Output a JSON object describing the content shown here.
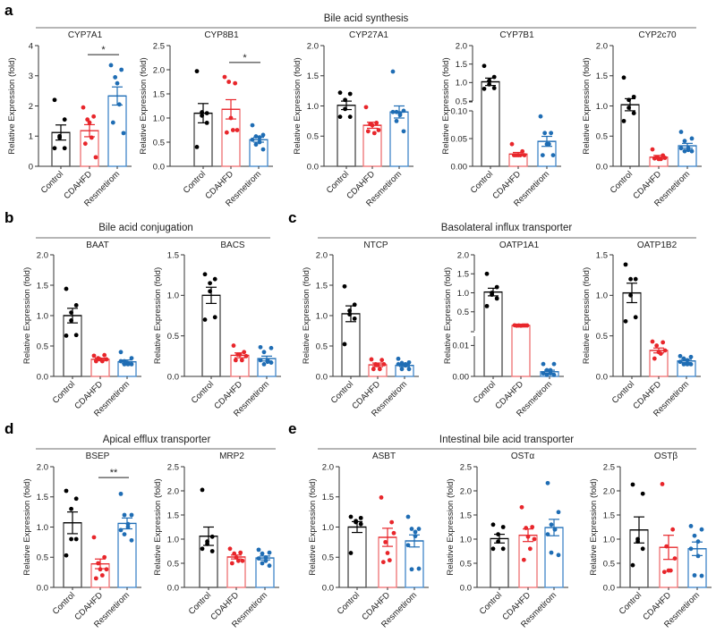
{
  "colors": {
    "Control": "#000000",
    "CDAHFD": "#e8262b",
    "Resmetirom": "#1f6db4",
    "bar_Control": "#555555",
    "bar_CDAHFD": "#f07a7c",
    "bar_Resmetirom": "#4e8fcc",
    "section_line": "#8a8a8a"
  },
  "sections": [
    {
      "letter": "a",
      "title": "Bile acid synthesis"
    },
    {
      "letter": "b",
      "title": "Bile acid conjugation"
    },
    {
      "letter": "c",
      "title": "Basolateral influx transporter"
    },
    {
      "letter": "d",
      "title": "Apical efflux transporter"
    },
    {
      "letter": "e",
      "title": "Intestinal bile acid transporter"
    }
  ],
  "chart_data": [
    {
      "type": "bar",
      "section": "a",
      "title": "CYP7A1",
      "ylabel": "Relative Expression (fold)",
      "ylim": [
        0,
        4
      ],
      "yticks": [
        0,
        1,
        2,
        3,
        4
      ],
      "ytick_labels": [
        "0",
        "1",
        "2",
        "3",
        "4"
      ],
      "categories": [
        "Control",
        "CDAHFD",
        "Resmetirom"
      ],
      "groups": [
        {
          "mean": 1.12,
          "sem": 0.25,
          "points": [
            2.2,
            1.55,
            0.95,
            1.0,
            0.6,
            0.6
          ]
        },
        {
          "mean": 1.18,
          "sem": 0.2,
          "points": [
            1.95,
            1.65,
            1.55,
            1.45,
            0.95,
            0.75,
            0.3
          ]
        },
        {
          "mean": 2.33,
          "sem": 0.3,
          "points": [
            3.35,
            3.2,
            2.95,
            2.75,
            2.05,
            1.45,
            1.1
          ]
        }
      ],
      "significance": [
        {
          "from": 1,
          "to": 2,
          "label": "*",
          "y": 3.7
        }
      ]
    },
    {
      "type": "bar",
      "section": "a",
      "title": "CYP8B1",
      "ylabel": "Relative Expression (fold)",
      "ylim": [
        0,
        2.5
      ],
      "yticks": [
        0,
        0.5,
        1,
        1.5,
        2,
        2.5
      ],
      "ytick_labels": [
        "0.0",
        "0.5",
        "1.0",
        "1.5",
        "2.0",
        "2.5"
      ],
      "categories": [
        "Control",
        "CDAHFD",
        "Resmetirom"
      ],
      "groups": [
        {
          "mean": 1.1,
          "sem": 0.2,
          "points": [
            1.97,
            1.1,
            1.05,
            1.12,
            0.9,
            0.4
          ]
        },
        {
          "mean": 1.18,
          "sem": 0.2,
          "points": [
            1.85,
            1.72,
            1.75,
            1.0,
            0.75,
            0.7,
            0.75
          ]
        },
        {
          "mean": 0.55,
          "sem": 0.05,
          "points": [
            0.85,
            0.65,
            0.62,
            0.6,
            0.5,
            0.45,
            0.35,
            0.55
          ]
        }
      ],
      "significance": [
        {
          "from": 1,
          "to": 2,
          "label": "*",
          "y": 2.15
        }
      ]
    },
    {
      "type": "bar",
      "section": "a",
      "title": "CYP27A1",
      "ylabel": "Relative Expression (fold)",
      "ylim": [
        0,
        2
      ],
      "yticks": [
        0,
        0.5,
        1,
        1.5,
        2
      ],
      "ytick_labels": [
        "0.0",
        "0.5",
        "1.0",
        "1.5",
        "2.0"
      ],
      "categories": [
        "Control",
        "CDAHFD",
        "Resmetirom"
      ],
      "groups": [
        {
          "mean": 1.01,
          "sem": 0.07,
          "points": [
            1.22,
            1.2,
            1.1,
            0.95,
            0.82,
            0.82
          ]
        },
        {
          "mean": 0.68,
          "sem": 0.05,
          "points": [
            0.98,
            0.72,
            0.7,
            0.68,
            0.55,
            0.58,
            0.6
          ]
        },
        {
          "mean": 0.9,
          "sem": 0.1,
          "points": [
            1.57,
            0.92,
            0.9,
            0.88,
            0.85,
            0.75,
            0.58,
            0.9
          ]
        }
      ]
    },
    {
      "type": "bar",
      "section": "a",
      "title": "CYP7B1",
      "ylabel": "Relative Expression (fold)",
      "axis_break": true,
      "lower": {
        "range": [
          0,
          0.1
        ],
        "yticks": [
          0,
          0.05,
          0.1
        ],
        "ytick_labels": [
          "0.00",
          "0.05",
          "0.10"
        ]
      },
      "upper": {
        "range": [
          0.5,
          2
        ],
        "yticks": [
          0.5,
          1,
          1.5,
          2
        ],
        "ytick_labels": [
          "0.5",
          "1.0",
          "1.5",
          "2.0"
        ]
      },
      "categories": [
        "Control",
        "CDAHFD",
        "Resmetirom"
      ],
      "groups": [
        {
          "mean": 1.02,
          "sem": 0.1,
          "points": [
            1.45,
            1.15,
            1.05,
            0.95,
            0.85,
            0.83
          ]
        },
        {
          "mean": 0.022,
          "sem": 0.003,
          "points": [
            0.04,
            0.027,
            0.02,
            0.02,
            0.02,
            0.02,
            0.02
          ]
        },
        {
          "mean": 0.045,
          "sem": 0.009,
          "points": [
            0.09,
            0.06,
            0.06,
            0.04,
            0.04,
            0.02,
            0.02
          ]
        }
      ]
    },
    {
      "type": "bar",
      "section": "a",
      "title": "CYP2c70",
      "ylabel": "Relative Expression (fold)",
      "ylim": [
        0,
        2
      ],
      "yticks": [
        0,
        0.5,
        1,
        1.5,
        2
      ],
      "ytick_labels": [
        "0.0",
        "0.5",
        "1.0",
        "1.5",
        "2.0"
      ],
      "categories": [
        "Control",
        "CDAHFD",
        "Resmetirom"
      ],
      "groups": [
        {
          "mean": 1.02,
          "sem": 0.1,
          "points": [
            1.47,
            1.15,
            1.1,
            0.97,
            0.88,
            0.75
          ]
        },
        {
          "mean": 0.15,
          "sem": 0.03,
          "points": [
            0.28,
            0.18,
            0.15,
            0.12,
            0.12,
            0.13,
            0.14
          ]
        },
        {
          "mean": 0.34,
          "sem": 0.04,
          "points": [
            0.57,
            0.46,
            0.42,
            0.3,
            0.27,
            0.25,
            0.25,
            0.3
          ]
        }
      ]
    },
    {
      "type": "bar",
      "section": "b",
      "title": "BAAT",
      "ylabel": "Relative Expression (fold)",
      "ylim": [
        0,
        2
      ],
      "yticks": [
        0,
        0.5,
        1,
        1.5,
        2
      ],
      "ytick_labels": [
        "0.0",
        "0.5",
        "1.0",
        "1.5",
        "2.0"
      ],
      "categories": [
        "Control",
        "CDAHFD",
        "Resmetirom"
      ],
      "groups": [
        {
          "mean": 1.0,
          "sem": 0.12,
          "points": [
            1.44,
            1.17,
            1.05,
            0.92,
            0.68,
            0.67
          ]
        },
        {
          "mean": 0.28,
          "sem": 0.02,
          "points": [
            0.34,
            0.35,
            0.3,
            0.28,
            0.25,
            0.25,
            0.28
          ]
        },
        {
          "mean": 0.24,
          "sem": 0.03,
          "points": [
            0.4,
            0.3,
            0.25,
            0.22,
            0.2,
            0.2,
            0.2,
            0.25
          ]
        }
      ]
    },
    {
      "type": "bar",
      "section": "b",
      "title": "BACS",
      "ylabel": "Relative Expression (fold)",
      "ylim": [
        0,
        1.5
      ],
      "yticks": [
        0,
        0.5,
        1,
        1.5
      ],
      "ytick_labels": [
        "0.0",
        "0.5",
        "1.0",
        "1.5"
      ],
      "categories": [
        "Control",
        "CDAHFD",
        "Resmetirom"
      ],
      "groups": [
        {
          "mean": 1.0,
          "sem": 0.1,
          "points": [
            1.26,
            1.2,
            1.15,
            1.05,
            0.73,
            0.7
          ]
        },
        {
          "mean": 0.26,
          "sem": 0.03,
          "points": [
            0.38,
            0.3,
            0.27,
            0.27,
            0.2,
            0.2,
            0.25
          ]
        },
        {
          "mean": 0.22,
          "sem": 0.03,
          "points": [
            0.36,
            0.35,
            0.3,
            0.2,
            0.18,
            0.15,
            0.17,
            0.2
          ]
        }
      ]
    },
    {
      "type": "bar",
      "section": "c",
      "title": "NTCP",
      "ylabel": "Relative Expression (fold)",
      "ylim": [
        0,
        2
      ],
      "yticks": [
        0,
        0.5,
        1,
        1.5,
        2
      ],
      "ytick_labels": [
        "0.0",
        "0.5",
        "1.0",
        "1.5",
        "2.0"
      ],
      "categories": [
        "Control",
        "CDAHFD",
        "Resmetirom"
      ],
      "groups": [
        {
          "mean": 1.03,
          "sem": 0.13,
          "points": [
            1.48,
            1.18,
            1.08,
            1.02,
            0.95,
            0.53
          ]
        },
        {
          "mean": 0.19,
          "sem": 0.03,
          "points": [
            0.28,
            0.27,
            0.2,
            0.19,
            0.12,
            0.12,
            0.2
          ]
        },
        {
          "mean": 0.18,
          "sem": 0.02,
          "points": [
            0.29,
            0.23,
            0.22,
            0.2,
            0.18,
            0.12,
            0.12,
            0.2
          ]
        }
      ]
    },
    {
      "type": "bar",
      "section": "c",
      "title": "OATP1A1",
      "ylabel": "Relative Expression (fold)",
      "axis_break": true,
      "lower": {
        "range": [
          0,
          0.013
        ],
        "yticks": [
          0,
          0.01
        ],
        "ytick_labels": [
          "0.00",
          "0.01"
        ]
      },
      "upper": {
        "range": [
          0,
          2
        ],
        "yticks": [
          0.5,
          1,
          1.5,
          2
        ],
        "ytick_labels": [
          "0.5",
          "1.0",
          "1.5",
          "2.0"
        ]
      },
      "categories": [
        "Control",
        "CDAHFD",
        "Resmetirom"
      ],
      "groups": [
        {
          "mean": 1.02,
          "sem": 0.1,
          "points": [
            1.5,
            1.15,
            1.0,
            0.95,
            0.85,
            0.65
          ]
        },
        {
          "mean": 0.14,
          "sem": 0.003,
          "points": [
            0.145,
            0.14,
            0.14,
            0.135,
            0.14,
            0.135,
            0.14
          ]
        },
        {
          "mean": 0.0015,
          "sem": 0.0005,
          "points": [
            0.004,
            0.004,
            0.002,
            0.002,
            0.001,
            0.0005,
            0.0005,
            0.001
          ]
        }
      ]
    },
    {
      "type": "bar",
      "section": "c",
      "title": "OATP1B2",
      "ylabel": "Relative Expression (fold)",
      "ylim": [
        0,
        1.5
      ],
      "yticks": [
        0,
        0.5,
        1,
        1.5
      ],
      "ytick_labels": [
        "0.0",
        "0.5",
        "1.0",
        "1.5"
      ],
      "categories": [
        "Control",
        "CDAHFD",
        "Resmetirom"
      ],
      "groups": [
        {
          "mean": 1.03,
          "sem": 0.12,
          "points": [
            1.38,
            1.2,
            1.2,
            1.0,
            0.73,
            0.68
          ]
        },
        {
          "mean": 0.32,
          "sem": 0.03,
          "points": [
            0.43,
            0.42,
            0.38,
            0.3,
            0.28,
            0.22,
            0.32
          ]
        },
        {
          "mean": 0.19,
          "sem": 0.02,
          "points": [
            0.25,
            0.24,
            0.22,
            0.2,
            0.15,
            0.15,
            0.15,
            0.18
          ]
        }
      ]
    },
    {
      "type": "bar",
      "section": "d",
      "title": "BSEP",
      "ylabel": "Relative Expression (fold)",
      "ylim": [
        0,
        2
      ],
      "yticks": [
        0,
        0.5,
        1,
        1.5,
        2
      ],
      "ytick_labels": [
        "0.0",
        "0.5",
        "1.0",
        "1.5",
        "2.0"
      ],
      "categories": [
        "Control",
        "CDAHFD",
        "Resmetirom"
      ],
      "groups": [
        {
          "mean": 1.07,
          "sem": 0.18,
          "points": [
            1.6,
            1.47,
            1.3,
            0.8,
            0.8,
            0.53
          ]
        },
        {
          "mean": 0.39,
          "sem": 0.08,
          "points": [
            0.83,
            0.5,
            0.4,
            0.3,
            0.2,
            0.15,
            0.3
          ]
        },
        {
          "mean": 1.06,
          "sem": 0.09,
          "points": [
            1.55,
            1.2,
            1.2,
            1.05,
            1.0,
            0.88,
            0.78,
            0.95
          ]
        }
      ],
      "significance": [
        {
          "from": 1,
          "to": 2,
          "label": "**",
          "y": 1.82
        }
      ]
    },
    {
      "type": "bar",
      "section": "d",
      "title": "MRP2",
      "ylabel": "Relative Expression (fold)",
      "ylim": [
        0,
        2.5
      ],
      "yticks": [
        0,
        0.5,
        1,
        1.5,
        2,
        2.5
      ],
      "ytick_labels": [
        "0.0",
        "0.5",
        "1.0",
        "1.5",
        "2.0",
        "2.5"
      ],
      "categories": [
        "Control",
        "CDAHFD",
        "Resmetirom"
      ],
      "groups": [
        {
          "mean": 1.06,
          "sem": 0.19,
          "points": [
            2.02,
            1.05,
            0.95,
            0.9,
            0.75,
            0.8
          ]
        },
        {
          "mean": 0.63,
          "sem": 0.04,
          "points": [
            0.8,
            0.72,
            0.7,
            0.62,
            0.55,
            0.5,
            0.55
          ]
        },
        {
          "mean": 0.61,
          "sem": 0.04,
          "points": [
            0.78,
            0.72,
            0.7,
            0.62,
            0.55,
            0.5,
            0.45,
            0.6
          ]
        }
      ]
    },
    {
      "type": "bar",
      "section": "e",
      "title": "ASBT",
      "ylabel": "Relative Expression (fold)",
      "ylim": [
        0,
        2
      ],
      "yticks": [
        0,
        0.5,
        1,
        1.5,
        2
      ],
      "ytick_labels": [
        "0.0",
        "0.5",
        "1.0",
        "1.5",
        "2.0"
      ],
      "categories": [
        "Control",
        "CDAHFD",
        "Resmetirom"
      ],
      "groups": [
        {
          "mean": 1.0,
          "sem": 0.09,
          "points": [
            1.17,
            1.15,
            1.1,
            1.08,
            1.05,
            0.57
          ]
        },
        {
          "mean": 0.83,
          "sem": 0.15,
          "points": [
            1.49,
            1.08,
            0.75,
            0.57,
            0.45,
            0.42,
            0.9
          ]
        },
        {
          "mean": 0.77,
          "sem": 0.1,
          "points": [
            1.17,
            0.97,
            0.97,
            0.92,
            0.85,
            0.3,
            0.31,
            0.7
          ]
        }
      ]
    },
    {
      "type": "bar",
      "section": "e",
      "title": "OSTα",
      "ylabel": "Relative Expression (fold)",
      "ylim": [
        0,
        2.5
      ],
      "yticks": [
        0,
        0.5,
        1,
        1.5,
        2,
        2.5
      ],
      "ytick_labels": [
        "0.0",
        "0.5",
        "1.0",
        "1.5",
        "2.0",
        "2.5"
      ],
      "categories": [
        "Control",
        "CDAHFD",
        "Resmetirom"
      ],
      "groups": [
        {
          "mean": 1.01,
          "sem": 0.09,
          "points": [
            1.3,
            1.25,
            1.1,
            0.95,
            0.8,
            0.8
          ]
        },
        {
          "mean": 1.08,
          "sem": 0.13,
          "points": [
            1.66,
            1.25,
            1.23,
            1.05,
            0.8,
            0.57,
            1.0
          ]
        },
        {
          "mean": 1.24,
          "sem": 0.17,
          "points": [
            2.16,
            1.56,
            1.3,
            1.2,
            1.2,
            0.72,
            0.67,
            1.1
          ]
        }
      ]
    },
    {
      "type": "bar",
      "section": "e",
      "title": "OSTβ",
      "ylabel": "Relative Expression (fold)",
      "ylim": [
        0,
        2.5
      ],
      "yticks": [
        0,
        0.5,
        1,
        1.5,
        2,
        2.5
      ],
      "ytick_labels": [
        "0.0",
        "0.5",
        "1.0",
        "1.5",
        "2.0",
        "2.5"
      ],
      "categories": [
        "Control",
        "CDAHFD",
        "Resmetirom"
      ],
      "groups": [
        {
          "mean": 1.19,
          "sem": 0.27,
          "points": [
            2.13,
            1.94,
            1.0,
            0.95,
            0.8,
            0.46
          ]
        },
        {
          "mean": 0.83,
          "sem": 0.25,
          "points": [
            2.14,
            1.2,
            0.85,
            0.35,
            0.35,
            0.32,
            0.6
          ]
        },
        {
          "mean": 0.8,
          "sem": 0.14,
          "points": [
            1.27,
            1.2,
            1.07,
            0.95,
            0.65,
            0.25,
            0.24,
            0.8
          ]
        }
      ]
    }
  ]
}
